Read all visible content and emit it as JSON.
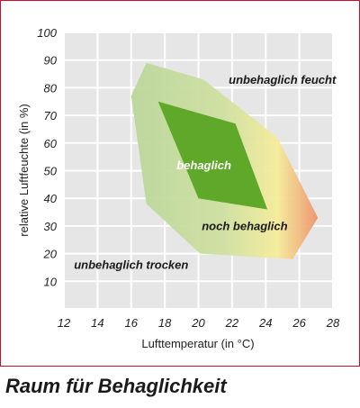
{
  "caption": "Raum für Behaglichkeit",
  "chart_data": {
    "type": "area",
    "xlabel": "Lufttemperatur (in °C)",
    "ylabel": "relative Luftfeuchte (in %)",
    "xlim": [
      12,
      28
    ],
    "ylim": [
      0,
      100
    ],
    "xticks": [
      12,
      14,
      16,
      18,
      20,
      22,
      24,
      26,
      28
    ],
    "yticks": [
      10,
      20,
      30,
      40,
      50,
      60,
      70,
      80,
      90,
      100
    ],
    "grid": true,
    "colors": {
      "outer_zone_green": "#b9d69a",
      "outer_zone_yellow": "#f5ec9a",
      "outer_zone_red": "#ee8c6a",
      "inner_zone": "#5fa829",
      "grid": "#ffffff",
      "plot_bg": "#e6e6e6"
    },
    "zones": [
      {
        "name": "noch behaglich",
        "points": [
          [
            16.9,
            89
          ],
          [
            20.3,
            83
          ],
          [
            24.7,
            62
          ],
          [
            27.1,
            33
          ],
          [
            25.6,
            18
          ],
          [
            20.1,
            20
          ],
          [
            16.9,
            38
          ],
          [
            16.0,
            77
          ]
        ]
      },
      {
        "name": "behaglich",
        "points": [
          [
            17.6,
            75
          ],
          [
            22.2,
            67
          ],
          [
            24.1,
            36
          ],
          [
            20.0,
            40
          ]
        ]
      }
    ],
    "annotations": [
      {
        "text": "unbehaglich feucht",
        "x": 21.8,
        "y": 81.5
      },
      {
        "text": "behaglich",
        "x": 18.7,
        "y": 50.5
      },
      {
        "text": "noch behaglich",
        "x": 20.2,
        "y": 28.5
      },
      {
        "text": "unbehaglich trocken",
        "x": 12.6,
        "y": 14.5
      }
    ]
  }
}
